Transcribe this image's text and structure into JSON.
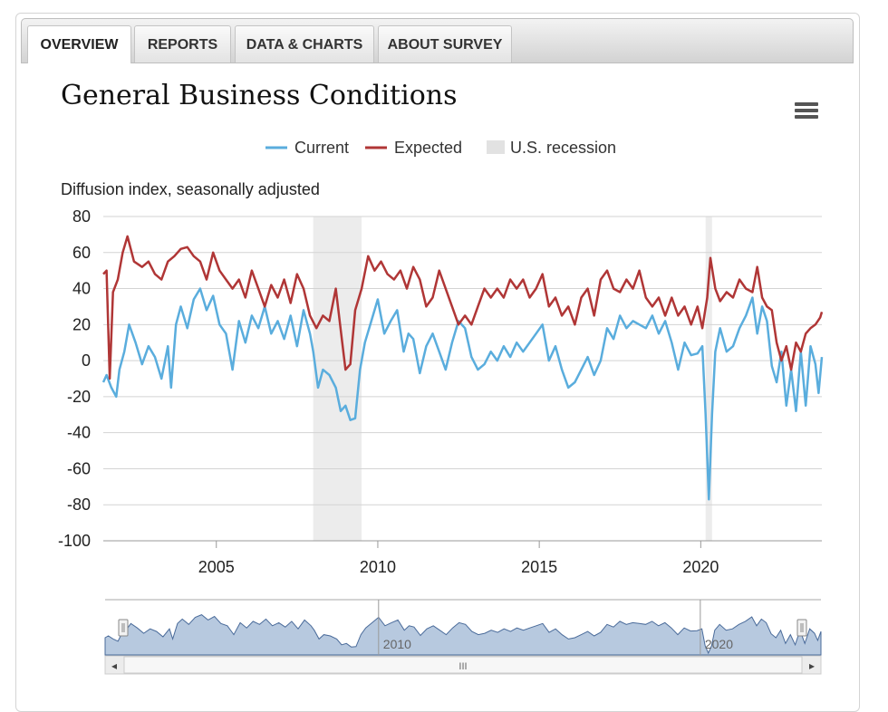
{
  "tabs": [
    {
      "label": "OVERVIEW",
      "active": true
    },
    {
      "label": "REPORTS",
      "active": false
    },
    {
      "label": "DATA & CHARTS",
      "active": false
    },
    {
      "label": "ABOUT SURVEY",
      "active": false
    }
  ],
  "menu_icon": "hamburger-menu-icon",
  "navigator": {
    "scroll_grip": "III",
    "left_arrow": "◂",
    "right_arrow": "▸",
    "ticks": [
      "2010",
      "2020"
    ]
  },
  "colors": {
    "current": "#5aaddd",
    "expected": "#b03636",
    "recession": "#ececec",
    "navigator_fill": "#b7c9df",
    "navigator_line": "#4a6b9a"
  },
  "chart_data": {
    "type": "line",
    "title": "General Business Conditions",
    "ylabel": "Diffusion index, seasonally adjusted",
    "ylim": [
      -100,
      80
    ],
    "yticks": [
      "80",
      "60",
      "40",
      "20",
      "0",
      "-20",
      "-40",
      "-60",
      "-80",
      "-100"
    ],
    "xlim": [
      2001.5,
      2023.75
    ],
    "xticks": [
      "2005",
      "2010",
      "2015",
      "2020"
    ],
    "legend": {
      "current": "Current",
      "expected": "Expected",
      "recession": "U.S. recession"
    },
    "legend_position": "top-center",
    "grid": true,
    "recessions": [
      [
        2008.0,
        2009.5
      ],
      [
        2020.15,
        2020.35
      ]
    ],
    "series": [
      {
        "name": "Current",
        "points": [
          [
            2001.5,
            -12
          ],
          [
            2001.6,
            -8
          ],
          [
            2001.75,
            -15
          ],
          [
            2001.9,
            -20
          ],
          [
            2002.0,
            -5
          ],
          [
            2002.15,
            5
          ],
          [
            2002.3,
            20
          ],
          [
            2002.5,
            10
          ],
          [
            2002.7,
            -2
          ],
          [
            2002.9,
            8
          ],
          [
            2003.1,
            2
          ],
          [
            2003.3,
            -10
          ],
          [
            2003.5,
            8
          ],
          [
            2003.6,
            -15
          ],
          [
            2003.75,
            20
          ],
          [
            2003.9,
            30
          ],
          [
            2004.1,
            18
          ],
          [
            2004.3,
            34
          ],
          [
            2004.5,
            40
          ],
          [
            2004.7,
            28
          ],
          [
            2004.9,
            36
          ],
          [
            2005.1,
            20
          ],
          [
            2005.3,
            15
          ],
          [
            2005.5,
            -5
          ],
          [
            2005.7,
            22
          ],
          [
            2005.9,
            10
          ],
          [
            2006.1,
            25
          ],
          [
            2006.3,
            18
          ],
          [
            2006.5,
            30
          ],
          [
            2006.7,
            15
          ],
          [
            2006.9,
            22
          ],
          [
            2007.1,
            12
          ],
          [
            2007.3,
            25
          ],
          [
            2007.5,
            8
          ],
          [
            2007.7,
            28
          ],
          [
            2007.9,
            15
          ],
          [
            2008.0,
            5
          ],
          [
            2008.15,
            -15
          ],
          [
            2008.3,
            -5
          ],
          [
            2008.5,
            -8
          ],
          [
            2008.7,
            -15
          ],
          [
            2008.85,
            -28
          ],
          [
            2009.0,
            -25
          ],
          [
            2009.15,
            -33
          ],
          [
            2009.3,
            -32
          ],
          [
            2009.45,
            -5
          ],
          [
            2009.6,
            10
          ],
          [
            2009.8,
            22
          ],
          [
            2010.0,
            34
          ],
          [
            2010.2,
            15
          ],
          [
            2010.4,
            22
          ],
          [
            2010.6,
            28
          ],
          [
            2010.8,
            5
          ],
          [
            2010.95,
            15
          ],
          [
            2011.1,
            12
          ],
          [
            2011.3,
            -7
          ],
          [
            2011.5,
            8
          ],
          [
            2011.7,
            15
          ],
          [
            2011.9,
            5
          ],
          [
            2012.1,
            -5
          ],
          [
            2012.3,
            10
          ],
          [
            2012.5,
            22
          ],
          [
            2012.7,
            18
          ],
          [
            2012.9,
            2
          ],
          [
            2013.1,
            -5
          ],
          [
            2013.3,
            -2
          ],
          [
            2013.5,
            5
          ],
          [
            2013.7,
            0
          ],
          [
            2013.9,
            8
          ],
          [
            2014.1,
            2
          ],
          [
            2014.3,
            10
          ],
          [
            2014.5,
            5
          ],
          [
            2014.7,
            10
          ],
          [
            2014.9,
            15
          ],
          [
            2015.1,
            20
          ],
          [
            2015.3,
            0
          ],
          [
            2015.5,
            8
          ],
          [
            2015.7,
            -5
          ],
          [
            2015.9,
            -15
          ],
          [
            2016.1,
            -12
          ],
          [
            2016.3,
            -5
          ],
          [
            2016.5,
            2
          ],
          [
            2016.7,
            -8
          ],
          [
            2016.9,
            0
          ],
          [
            2017.1,
            18
          ],
          [
            2017.3,
            12
          ],
          [
            2017.5,
            25
          ],
          [
            2017.7,
            18
          ],
          [
            2017.9,
            22
          ],
          [
            2018.1,
            20
          ],
          [
            2018.3,
            18
          ],
          [
            2018.5,
            25
          ],
          [
            2018.7,
            15
          ],
          [
            2018.9,
            22
          ],
          [
            2019.1,
            10
          ],
          [
            2019.3,
            -5
          ],
          [
            2019.5,
            10
          ],
          [
            2019.7,
            3
          ],
          [
            2019.9,
            4
          ],
          [
            2020.05,
            8
          ],
          [
            2020.15,
            -30
          ],
          [
            2020.25,
            -77
          ],
          [
            2020.35,
            -30
          ],
          [
            2020.45,
            5
          ],
          [
            2020.6,
            18
          ],
          [
            2020.8,
            5
          ],
          [
            2021.0,
            8
          ],
          [
            2021.2,
            18
          ],
          [
            2021.4,
            25
          ],
          [
            2021.6,
            35
          ],
          [
            2021.75,
            15
          ],
          [
            2021.9,
            30
          ],
          [
            2022.05,
            22
          ],
          [
            2022.2,
            -3
          ],
          [
            2022.35,
            -12
          ],
          [
            2022.5,
            5
          ],
          [
            2022.65,
            -25
          ],
          [
            2022.8,
            -5
          ],
          [
            2022.95,
            -28
          ],
          [
            2023.1,
            5
          ],
          [
            2023.25,
            -25
          ],
          [
            2023.4,
            8
          ],
          [
            2023.55,
            -2
          ],
          [
            2023.65,
            -18
          ],
          [
            2023.75,
            2
          ]
        ]
      },
      {
        "name": "Expected",
        "points": [
          [
            2001.5,
            48
          ],
          [
            2001.6,
            50
          ],
          [
            2001.7,
            -10
          ],
          [
            2001.8,
            38
          ],
          [
            2001.95,
            45
          ],
          [
            2002.1,
            60
          ],
          [
            2002.25,
            69
          ],
          [
            2002.45,
            55
          ],
          [
            2002.7,
            52
          ],
          [
            2002.9,
            55
          ],
          [
            2003.1,
            48
          ],
          [
            2003.3,
            45
          ],
          [
            2003.5,
            55
          ],
          [
            2003.7,
            58
          ],
          [
            2003.9,
            62
          ],
          [
            2004.1,
            63
          ],
          [
            2004.3,
            58
          ],
          [
            2004.5,
            55
          ],
          [
            2004.7,
            45
          ],
          [
            2004.9,
            60
          ],
          [
            2005.1,
            50
          ],
          [
            2005.3,
            45
          ],
          [
            2005.5,
            40
          ],
          [
            2005.7,
            45
          ],
          [
            2005.9,
            35
          ],
          [
            2006.1,
            50
          ],
          [
            2006.3,
            40
          ],
          [
            2006.5,
            30
          ],
          [
            2006.7,
            42
          ],
          [
            2006.9,
            35
          ],
          [
            2007.1,
            45
          ],
          [
            2007.3,
            32
          ],
          [
            2007.5,
            48
          ],
          [
            2007.7,
            40
          ],
          [
            2007.9,
            25
          ],
          [
            2008.1,
            18
          ],
          [
            2008.3,
            25
          ],
          [
            2008.5,
            22
          ],
          [
            2008.7,
            40
          ],
          [
            2008.9,
            10
          ],
          [
            2009.0,
            -5
          ],
          [
            2009.15,
            -2
          ],
          [
            2009.3,
            28
          ],
          [
            2009.5,
            40
          ],
          [
            2009.7,
            58
          ],
          [
            2009.9,
            50
          ],
          [
            2010.1,
            55
          ],
          [
            2010.3,
            48
          ],
          [
            2010.5,
            45
          ],
          [
            2010.7,
            50
          ],
          [
            2010.9,
            40
          ],
          [
            2011.1,
            52
          ],
          [
            2011.3,
            45
          ],
          [
            2011.5,
            30
          ],
          [
            2011.7,
            35
          ],
          [
            2011.9,
            50
          ],
          [
            2012.1,
            40
          ],
          [
            2012.3,
            30
          ],
          [
            2012.5,
            20
          ],
          [
            2012.7,
            25
          ],
          [
            2012.9,
            20
          ],
          [
            2013.1,
            30
          ],
          [
            2013.3,
            40
          ],
          [
            2013.5,
            35
          ],
          [
            2013.7,
            40
          ],
          [
            2013.9,
            35
          ],
          [
            2014.1,
            45
          ],
          [
            2014.3,
            40
          ],
          [
            2014.5,
            45
          ],
          [
            2014.7,
            35
          ],
          [
            2014.9,
            40
          ],
          [
            2015.1,
            48
          ],
          [
            2015.3,
            30
          ],
          [
            2015.5,
            35
          ],
          [
            2015.7,
            25
          ],
          [
            2015.9,
            30
          ],
          [
            2016.1,
            20
          ],
          [
            2016.3,
            35
          ],
          [
            2016.5,
            40
          ],
          [
            2016.7,
            25
          ],
          [
            2016.9,
            45
          ],
          [
            2017.1,
            50
          ],
          [
            2017.3,
            40
          ],
          [
            2017.5,
            38
          ],
          [
            2017.7,
            45
          ],
          [
            2017.9,
            40
          ],
          [
            2018.1,
            50
          ],
          [
            2018.3,
            35
          ],
          [
            2018.5,
            30
          ],
          [
            2018.7,
            35
          ],
          [
            2018.9,
            25
          ],
          [
            2019.1,
            35
          ],
          [
            2019.3,
            25
          ],
          [
            2019.5,
            30
          ],
          [
            2019.7,
            20
          ],
          [
            2019.9,
            30
          ],
          [
            2020.05,
            18
          ],
          [
            2020.2,
            35
          ],
          [
            2020.3,
            57
          ],
          [
            2020.45,
            40
          ],
          [
            2020.6,
            33
          ],
          [
            2020.8,
            38
          ],
          [
            2021.0,
            35
          ],
          [
            2021.2,
            45
          ],
          [
            2021.4,
            40
          ],
          [
            2021.6,
            38
          ],
          [
            2021.75,
            52
          ],
          [
            2021.9,
            35
          ],
          [
            2022.05,
            30
          ],
          [
            2022.2,
            28
          ],
          [
            2022.35,
            10
          ],
          [
            2022.5,
            0
          ],
          [
            2022.65,
            8
          ],
          [
            2022.8,
            -5
          ],
          [
            2022.95,
            10
          ],
          [
            2023.1,
            5
          ],
          [
            2023.25,
            15
          ],
          [
            2023.4,
            18
          ],
          [
            2023.55,
            20
          ],
          [
            2023.7,
            24
          ],
          [
            2023.75,
            27
          ]
        ]
      }
    ]
  }
}
